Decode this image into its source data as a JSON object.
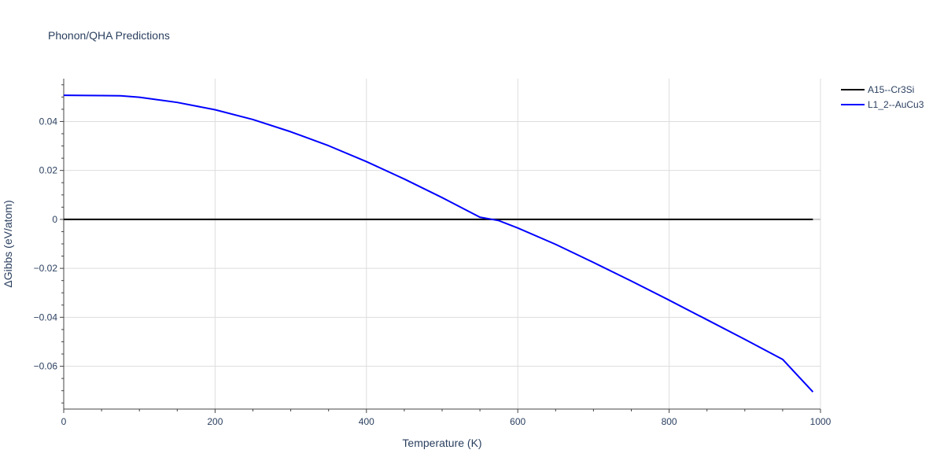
{
  "chart_data": {
    "type": "line",
    "title": "Phonon/QHA Predictions",
    "xlabel": "Temperature (K)",
    "ylabel": "ΔGibbs (eV/atom)",
    "xlim": [
      0,
      1000
    ],
    "ylim": [
      -0.0775,
      0.0575
    ],
    "x_ticks": [
      0,
      200,
      400,
      600,
      800,
      1000
    ],
    "x_tick_labels": [
      "0",
      "200",
      "400",
      "600",
      "800",
      "1000"
    ],
    "y_ticks": [
      0.04,
      0.02,
      0,
      -0.02,
      -0.04,
      -0.06
    ],
    "y_tick_labels": [
      "0.04",
      "0.02",
      "0",
      "−0.02",
      "−0.04",
      "−0.06"
    ],
    "grid": true,
    "legend_position": "top-right",
    "series": [
      {
        "name": "A15--Cr3Si",
        "color": "#000000",
        "x": [
          0,
          990
        ],
        "y": [
          0,
          0
        ]
      },
      {
        "name": "L1_2--AuCu3",
        "color": "#0000ff",
        "x": [
          0,
          50,
          75,
          100,
          150,
          200,
          250,
          300,
          350,
          400,
          450,
          500,
          550,
          575,
          600,
          650,
          700,
          750,
          800,
          850,
          900,
          950,
          990
        ],
        "y": [
          0.0507,
          0.0506,
          0.0505,
          0.0499,
          0.0478,
          0.0448,
          0.0408,
          0.0358,
          0.0301,
          0.0236,
          0.0165,
          0.0089,
          0.0009,
          -0.0005,
          -0.0035,
          -0.0102,
          -0.0176,
          -0.0252,
          -0.033,
          -0.041,
          -0.049,
          -0.0572,
          -0.0705
        ]
      }
    ]
  }
}
